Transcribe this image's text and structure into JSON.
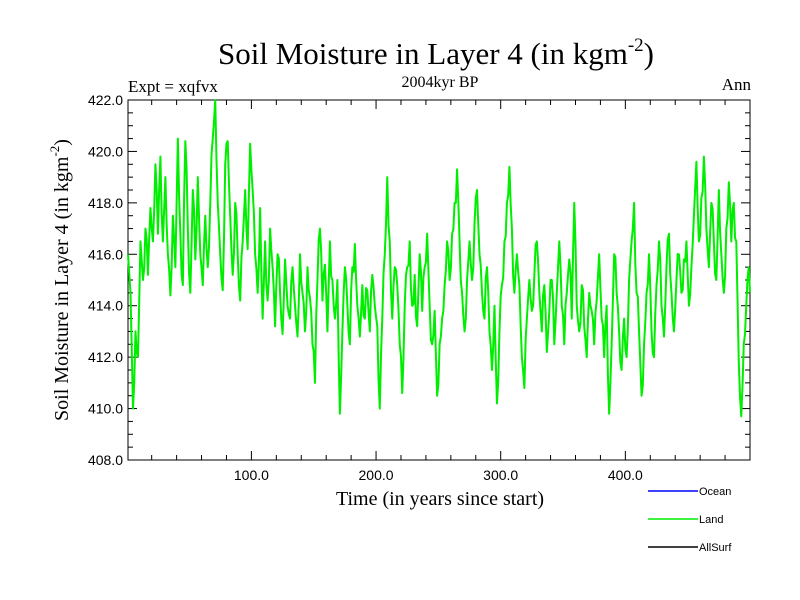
{
  "chart_data": {
    "type": "line",
    "title": "Soil Moisture in Layer 4 (in kgm",
    "title_sup": "-2",
    "title_close": ")",
    "subtitle": "2004kyr BP",
    "expt_label": "Expt = xqfvx",
    "season_label": "Ann",
    "xlabel": "Time (in years since start)",
    "ylabel": "Soil Moisture in Layer 4 (in kgm",
    "ylabel_sup": "-2",
    "ylabel_close": ")",
    "xlim": [
      1,
      500
    ],
    "ylim": [
      408,
      422
    ],
    "x_ticks": [
      100,
      200,
      300,
      400
    ],
    "x_tick_labels": [
      "100.0",
      "200.0",
      "300.0",
      "400.0"
    ],
    "y_ticks": [
      408,
      410,
      412,
      414,
      416,
      418,
      420,
      422
    ],
    "y_tick_labels": [
      "408.0",
      "410.0",
      "412.0",
      "414.0",
      "416.0",
      "418.0",
      "420.0",
      "422.0"
    ],
    "legend": [
      {
        "name": "Ocean",
        "color": "#0000ff"
      },
      {
        "name": "Land",
        "color": "#00ee00"
      },
      {
        "name": "AllSurf",
        "color": "#000000"
      }
    ],
    "series": [
      {
        "name": "Land",
        "color": "#00ee00",
        "keypoints": [
          [
            1,
            416.0
          ],
          [
            3,
            414.5
          ],
          [
            5,
            410.0
          ],
          [
            7,
            413.0
          ],
          [
            9,
            412.0
          ],
          [
            11,
            416.5
          ],
          [
            13,
            415.0
          ],
          [
            15,
            417.0
          ],
          [
            17,
            415.2
          ],
          [
            19,
            417.8
          ],
          [
            21,
            416.5
          ],
          [
            23,
            419.5
          ],
          [
            25,
            416.8
          ],
          [
            27,
            419.8
          ],
          [
            29,
            416.5
          ],
          [
            31,
            419.0
          ],
          [
            33,
            416.0
          ],
          [
            35,
            414.4
          ],
          [
            37,
            417.5
          ],
          [
            39,
            415.5
          ],
          [
            41,
            420.5
          ],
          [
            43,
            416.8
          ],
          [
            45,
            414.8
          ],
          [
            47,
            420.4
          ],
          [
            49,
            417.0
          ],
          [
            51,
            414.5
          ],
          [
            53,
            418.5
          ],
          [
            55,
            415.8
          ],
          [
            57,
            419.0
          ],
          [
            59,
            416.0
          ],
          [
            61,
            414.8
          ],
          [
            63,
            417.5
          ],
          [
            65,
            415.5
          ],
          [
            67,
            418.0
          ],
          [
            69,
            420.5
          ],
          [
            71,
            422.0
          ],
          [
            73,
            418.0
          ],
          [
            75,
            416.0
          ],
          [
            77,
            414.6
          ],
          [
            79,
            419.5
          ],
          [
            81,
            420.4
          ],
          [
            83,
            417.5
          ],
          [
            85,
            415.2
          ],
          [
            87,
            418.0
          ],
          [
            89,
            416.0
          ],
          [
            91,
            414.2
          ],
          [
            93,
            416.5
          ],
          [
            95,
            418.5
          ],
          [
            97,
            416.2
          ],
          [
            99,
            420.3
          ],
          [
            101,
            418.5
          ],
          [
            103,
            416.0
          ],
          [
            105,
            414.5
          ],
          [
            107,
            417.8
          ],
          [
            109,
            413.5
          ],
          [
            111,
            416.5
          ],
          [
            113,
            414.2
          ],
          [
            115,
            417.0
          ],
          [
            117,
            415.5
          ],
          [
            119,
            413.2
          ],
          [
            121,
            416.0
          ],
          [
            123,
            414.5
          ],
          [
            125,
            412.9
          ],
          [
            127,
            415.8
          ],
          [
            129,
            414.0
          ],
          [
            131,
            413.5
          ],
          [
            133,
            415.5
          ],
          [
            135,
            414.0
          ],
          [
            137,
            412.8
          ],
          [
            139,
            416.0
          ],
          [
            141,
            414.5
          ],
          [
            143,
            413.0
          ],
          [
            145,
            415.5
          ],
          [
            147,
            414.3
          ],
          [
            149,
            412.5
          ],
          [
            151,
            411.0
          ],
          [
            153,
            415.0
          ],
          [
            155,
            417.0
          ],
          [
            157,
            414.2
          ],
          [
            159,
            415.6
          ],
          [
            161,
            413.0
          ],
          [
            163,
            416.5
          ],
          [
            165,
            415.0
          ],
          [
            167,
            413.5
          ],
          [
            169,
            415.0
          ],
          [
            171,
            409.8
          ],
          [
            173,
            413.0
          ],
          [
            175,
            415.5
          ],
          [
            177,
            414.0
          ],
          [
            179,
            412.5
          ],
          [
            181,
            415.5
          ],
          [
            183,
            416.4
          ],
          [
            185,
            414.0
          ],
          [
            187,
            412.8
          ],
          [
            189,
            414.8
          ],
          [
            191,
            413.5
          ],
          [
            193,
            414.6
          ],
          [
            195,
            413.0
          ],
          [
            197,
            415.2
          ],
          [
            199,
            414.0
          ],
          [
            201,
            413.2
          ],
          [
            203,
            410.0
          ],
          [
            205,
            413.5
          ],
          [
            207,
            416.0
          ],
          [
            209,
            419.0
          ],
          [
            211,
            416.5
          ],
          [
            213,
            413.5
          ],
          [
            215,
            415.5
          ],
          [
            217,
            414.8
          ],
          [
            219,
            412.5
          ],
          [
            221,
            410.6
          ],
          [
            223,
            414.0
          ],
          [
            225,
            415.5
          ],
          [
            227,
            416.5
          ],
          [
            229,
            414.0
          ],
          [
            231,
            415.2
          ],
          [
            233,
            413.2
          ],
          [
            235,
            416.0
          ],
          [
            237,
            413.8
          ],
          [
            239,
            415.5
          ],
          [
            241,
            416.8
          ],
          [
            243,
            414.0
          ],
          [
            245,
            412.5
          ],
          [
            247,
            413.8
          ],
          [
            249,
            410.5
          ],
          [
            251,
            412.5
          ],
          [
            253,
            413.5
          ],
          [
            255,
            414.8
          ],
          [
            257,
            416.5
          ],
          [
            259,
            415.0
          ],
          [
            261,
            416.8
          ],
          [
            263,
            418.0
          ],
          [
            265,
            419.3
          ],
          [
            267,
            416.5
          ],
          [
            269,
            414.5
          ],
          [
            271,
            413.0
          ],
          [
            273,
            415.0
          ],
          [
            275,
            416.5
          ],
          [
            277,
            415.0
          ],
          [
            279,
            417.2
          ],
          [
            281,
            418.5
          ],
          [
            283,
            416.0
          ],
          [
            285,
            414.5
          ],
          [
            287,
            413.5
          ],
          [
            289,
            415.5
          ],
          [
            291,
            413.0
          ],
          [
            293,
            411.5
          ],
          [
            295,
            414.0
          ],
          [
            297,
            410.2
          ],
          [
            299,
            413.0
          ],
          [
            301,
            414.8
          ],
          [
            303,
            416.5
          ],
          [
            305,
            418.0
          ],
          [
            307,
            419.4
          ],
          [
            309,
            417.0
          ],
          [
            311,
            414.5
          ],
          [
            313,
            416.0
          ],
          [
            315,
            414.8
          ],
          [
            317,
            412.0
          ],
          [
            319,
            410.8
          ],
          [
            321,
            413.5
          ],
          [
            323,
            415.0
          ],
          [
            325,
            413.8
          ],
          [
            327,
            415.2
          ],
          [
            329,
            416.5
          ],
          [
            331,
            414.5
          ],
          [
            333,
            413.0
          ],
          [
            335,
            414.8
          ],
          [
            337,
            412.2
          ],
          [
            339,
            413.8
          ],
          [
            341,
            415.0
          ],
          [
            343,
            412.5
          ],
          [
            345,
            414.5
          ],
          [
            347,
            416.5
          ],
          [
            349,
            414.0
          ],
          [
            351,
            412.5
          ],
          [
            353,
            414.5
          ],
          [
            355,
            415.8
          ],
          [
            357,
            413.5
          ],
          [
            359,
            418.0
          ],
          [
            361,
            414.0
          ],
          [
            363,
            413.0
          ],
          [
            365,
            414.8
          ],
          [
            367,
            413.2
          ],
          [
            369,
            412.0
          ],
          [
            371,
            414.5
          ],
          [
            373,
            413.8
          ],
          [
            375,
            412.5
          ],
          [
            377,
            414.2
          ],
          [
            379,
            416.0
          ],
          [
            381,
            413.5
          ],
          [
            383,
            412.0
          ],
          [
            385,
            414.0
          ],
          [
            387,
            409.8
          ],
          [
            389,
            412.5
          ],
          [
            391,
            416.0
          ],
          [
            393,
            414.5
          ],
          [
            395,
            413.0
          ],
          [
            397,
            411.5
          ],
          [
            399,
            413.5
          ],
          [
            401,
            412.0
          ],
          [
            403,
            415.0
          ],
          [
            405,
            416.5
          ],
          [
            407,
            418.0
          ],
          [
            409,
            414.5
          ],
          [
            411,
            413.0
          ],
          [
            413,
            410.5
          ],
          [
            415,
            412.5
          ],
          [
            417,
            414.5
          ],
          [
            419,
            416.0
          ],
          [
            421,
            413.0
          ],
          [
            423,
            412.0
          ],
          [
            425,
            414.8
          ],
          [
            427,
            416.5
          ],
          [
            429,
            414.0
          ],
          [
            431,
            412.8
          ],
          [
            433,
            415.5
          ],
          [
            435,
            416.8
          ],
          [
            437,
            414.5
          ],
          [
            439,
            413.0
          ],
          [
            441,
            415.0
          ],
          [
            443,
            416.0
          ],
          [
            445,
            414.5
          ],
          [
            447,
            415.8
          ],
          [
            449,
            416.5
          ],
          [
            451,
            414.0
          ],
          [
            453,
            415.5
          ],
          [
            455,
            417.5
          ],
          [
            457,
            419.6
          ],
          [
            459,
            416.5
          ],
          [
            461,
            418.2
          ],
          [
            463,
            419.8
          ],
          [
            465,
            417.0
          ],
          [
            467,
            415.5
          ],
          [
            469,
            418.0
          ],
          [
            471,
            416.5
          ],
          [
            473,
            415.0
          ],
          [
            475,
            418.5
          ],
          [
            477,
            416.0
          ],
          [
            479,
            414.5
          ],
          [
            481,
            417.0
          ],
          [
            483,
            418.8
          ],
          [
            485,
            416.5
          ],
          [
            487,
            418.0
          ],
          [
            489,
            416.5
          ],
          [
            491,
            411.8
          ],
          [
            493,
            409.7
          ],
          [
            495,
            412.5
          ],
          [
            497,
            414.0
          ],
          [
            499,
            415.5
          ],
          [
            500,
            414.5
          ]
        ]
      }
    ]
  }
}
